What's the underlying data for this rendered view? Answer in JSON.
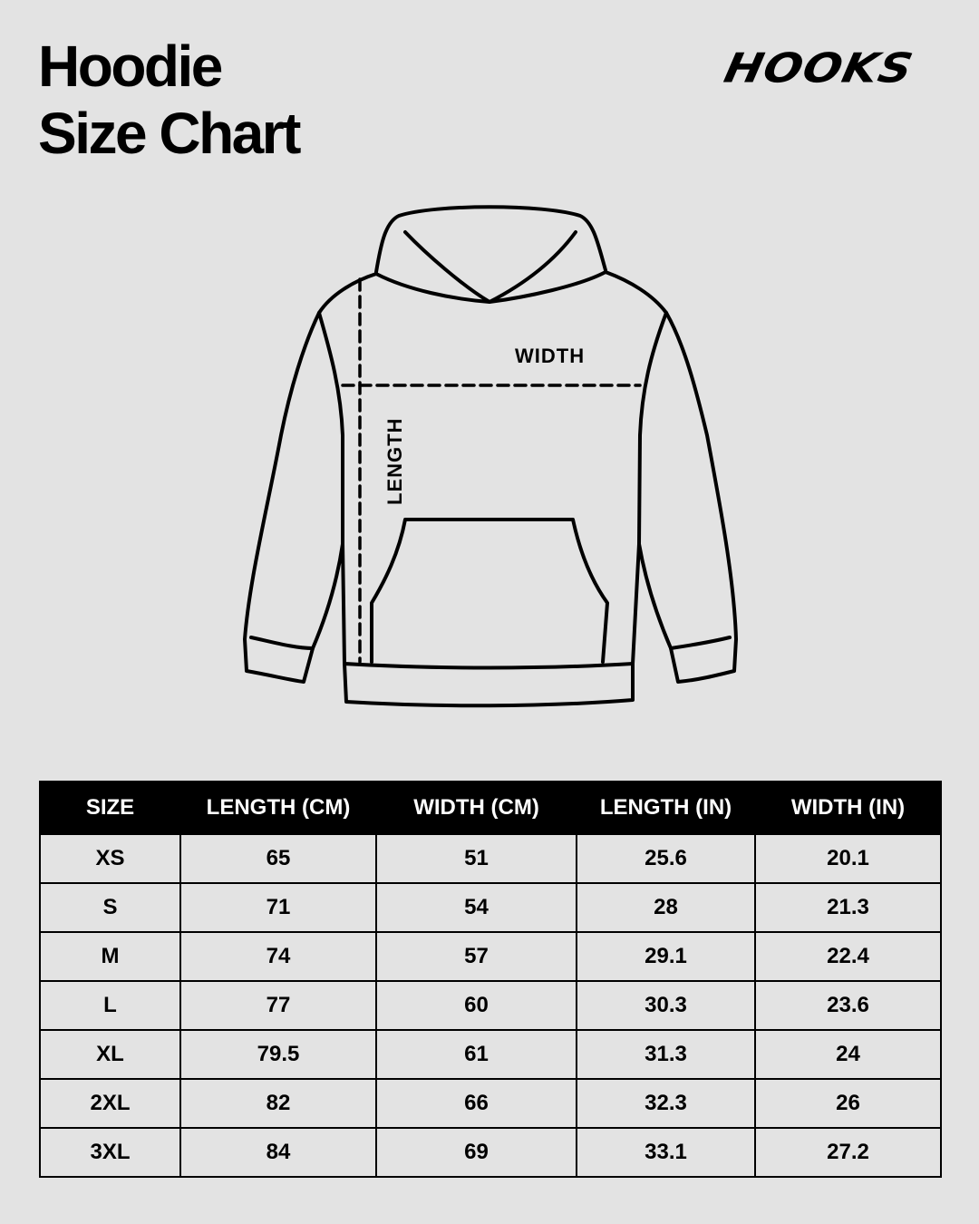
{
  "title": {
    "line1": "Hoodie",
    "line2": "Size Chart"
  },
  "brand": {
    "logo": "HOOKS"
  },
  "diagram": {
    "width_label": "WIDTH",
    "length_label": "LENGTH"
  },
  "table": {
    "headers": [
      "SIZE",
      "LENGTH (CM)",
      "WIDTH (CM)",
      "LENGTH (IN)",
      "WIDTH (IN)"
    ],
    "rows": [
      [
        "XS",
        "65",
        "51",
        "25.6",
        "20.1"
      ],
      [
        "S",
        "71",
        "54",
        "28",
        "21.3"
      ],
      [
        "M",
        "74",
        "57",
        "29.1",
        "22.4"
      ],
      [
        "L",
        "77",
        "60",
        "30.3",
        "23.6"
      ],
      [
        "XL",
        "79.5",
        "61",
        "31.3",
        "24"
      ],
      [
        "2XL",
        "82",
        "66",
        "32.3",
        "26"
      ],
      [
        "3XL",
        "84",
        "69",
        "33.1",
        "27.2"
      ]
    ]
  }
}
